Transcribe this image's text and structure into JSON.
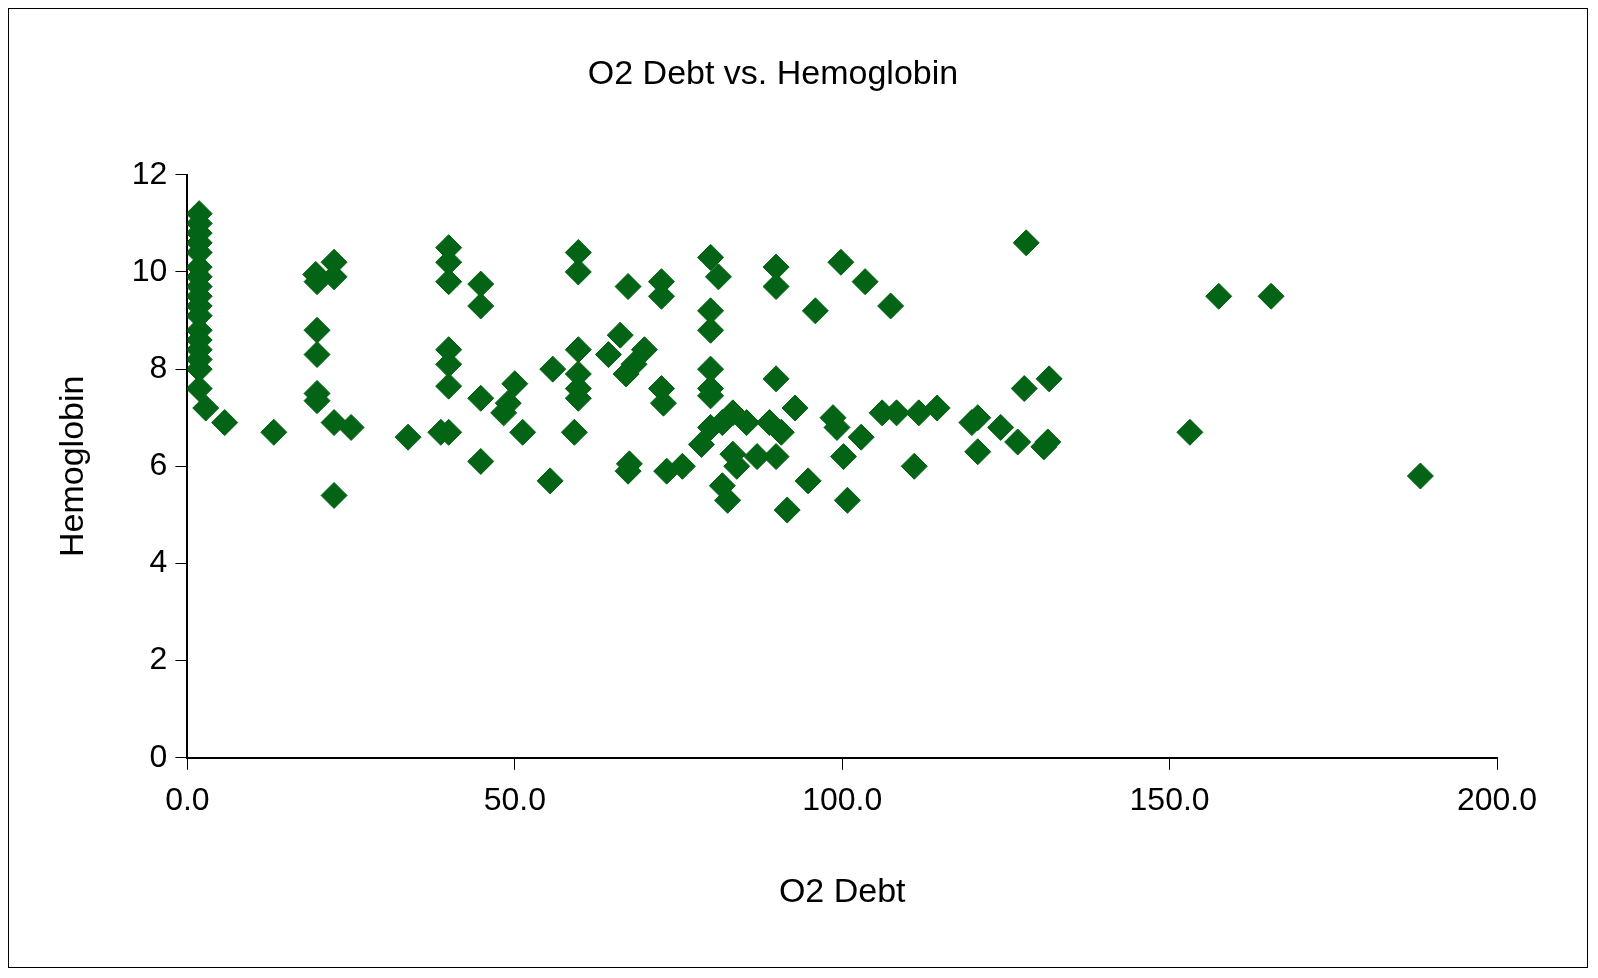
{
  "chart_data": {
    "type": "scatter",
    "title": "O2 Debt vs. Hemoglobin",
    "xlabel": "O2 Debt",
    "ylabel": "Hemoglobin",
    "xlim": [
      0,
      200
    ],
    "xticks": [
      {
        "value": 0,
        "label": "0.0"
      },
      {
        "value": 50,
        "label": "50.0"
      },
      {
        "value": 100,
        "label": "100.0"
      },
      {
        "value": 150,
        "label": "150.0"
      },
      {
        "value": 200,
        "label": "200.0"
      }
    ],
    "ylim": [
      0,
      12
    ],
    "yticks": [
      0,
      2,
      4,
      6,
      8,
      10,
      12
    ],
    "grid": false,
    "legend": false,
    "marker": "diamond",
    "series": [
      {
        "color": "#046416",
        "x": [
          1.8,
          1.8,
          1.8,
          1.8,
          1.8,
          1.8,
          1.8,
          1.8,
          1.8,
          1.8,
          1.8,
          1.8,
          1.8,
          1.8,
          1.8,
          1.8,
          1.8,
          2.8,
          5.7,
          13.2,
          19.6,
          19.8,
          22.4,
          22.4,
          19.8,
          19.8,
          19.8,
          19.8,
          22.4,
          25,
          22.4,
          33.7,
          38.7,
          39.9,
          39.9,
          39.9,
          39.9,
          39.9,
          39.9,
          39.9,
          44.8,
          44.8,
          44.8,
          44.8,
          48.3,
          49,
          50,
          51.2,
          55.8,
          55.4,
          59.7,
          59.7,
          59.7,
          59.7,
          59.7,
          59.7,
          59.1,
          64.3,
          66.1,
          67.3,
          67,
          68.2,
          69.8,
          67.5,
          67.3,
          72.4,
          72.4,
          72.4,
          72.7,
          73.2,
          75.6,
          79.9,
          79.9,
          79.9,
          79.9,
          79.9,
          79.9,
          81.1,
          78.5,
          79.9,
          81.7,
          81.7,
          82.5,
          83.3,
          83.9,
          83.3,
          85.4,
          87,
          88.9,
          89.9,
          89.9,
          89.9,
          89.9,
          90.7,
          91.6,
          92.8,
          94.8,
          95.9,
          99.8,
          98.6,
          99.2,
          100.2,
          100.8,
          103.5,
          102.9,
          107.4,
          106.1,
          108.3,
          111,
          111.7,
          114.5,
          119.8,
          120.7,
          120.7,
          124.2,
          126.8,
          127.8,
          128.1,
          130.8,
          131.4,
          131.6,
          153.1,
          157.5,
          165.5,
          188.3
        ],
        "values": [
          11.2,
          11.0,
          10.8,
          10.6,
          10.4,
          10.1,
          9.9,
          9.7,
          9.5,
          9.3,
          9.1,
          8.8,
          8.6,
          8.4,
          8.2,
          8.0,
          7.6,
          7.2,
          6.9,
          6.7,
          9.95,
          9.8,
          10.2,
          9.9,
          8.8,
          8.3,
          7.5,
          7.35,
          6.9,
          6.8,
          5.4,
          6.6,
          6.7,
          6.7,
          10.5,
          10.2,
          9.8,
          8.4,
          8.1,
          7.65,
          9.75,
          9.3,
          7.4,
          6.1,
          7.1,
          7.3,
          7.7,
          6.7,
          8.0,
          5.7,
          10.4,
          10.0,
          8.4,
          7.9,
          7.6,
          7.4,
          6.7,
          8.3,
          8.7,
          9.7,
          7.9,
          8.1,
          8.4,
          6.05,
          5.9,
          9.8,
          9.5,
          7.6,
          7.3,
          5.9,
          6.0,
          10.3,
          9.2,
          8.8,
          8.0,
          7.6,
          7.45,
          9.9,
          6.45,
          6.8,
          6.9,
          5.6,
          5.3,
          6.25,
          6.0,
          7.1,
          6.9,
          6.2,
          6.9,
          10.1,
          9.7,
          7.8,
          6.2,
          6.7,
          5.1,
          7.2,
          5.7,
          9.2,
          10.2,
          7.0,
          6.8,
          6.2,
          5.3,
          9.8,
          6.6,
          9.3,
          7.1,
          7.1,
          6.0,
          7.1,
          7.2,
          6.9,
          7.0,
          6.3,
          6.8,
          6.5,
          7.6,
          10.6,
          6.4,
          6.5,
          7.8,
          6.7,
          9.5,
          9.5,
          5.8
        ]
      }
    ]
  }
}
